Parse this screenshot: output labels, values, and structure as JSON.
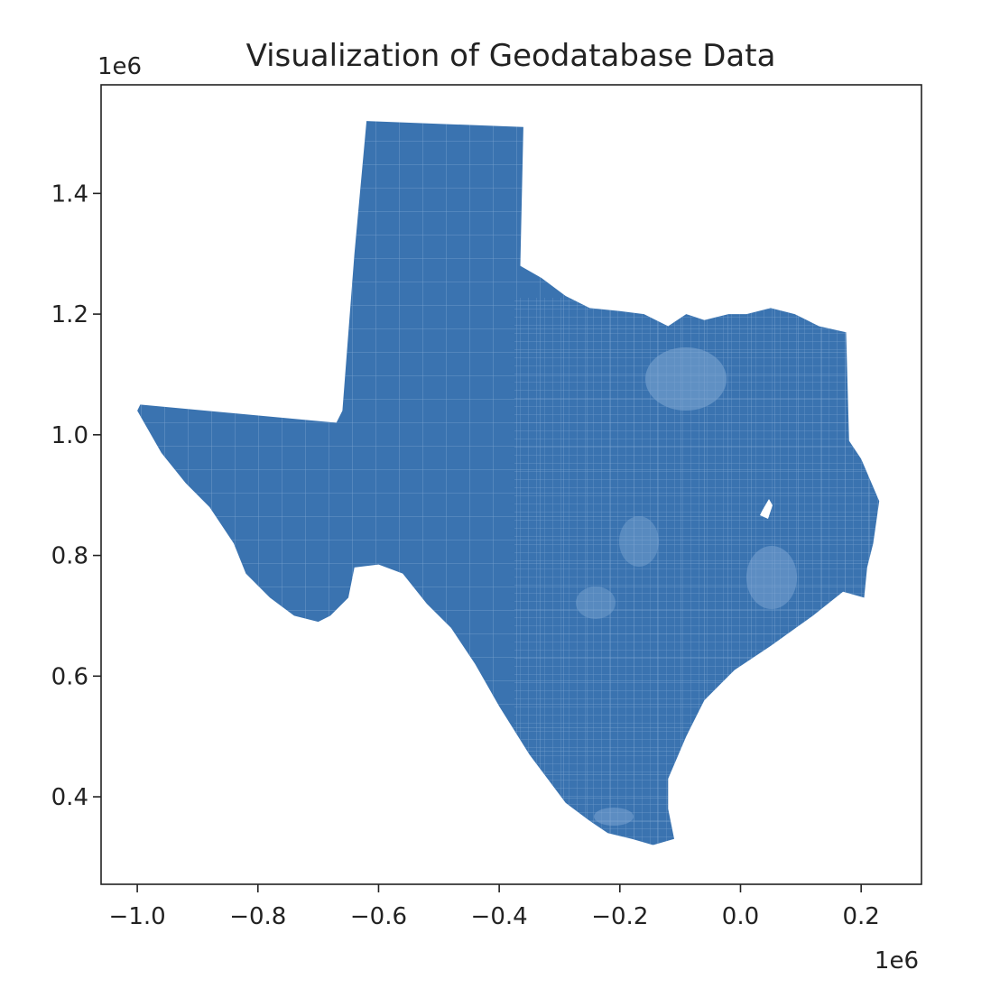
{
  "title": "Visualization of Geodatabase Data",
  "x_axis": {
    "offset_label": "1e6",
    "ticks": [
      {
        "value": -1.0,
        "label": "−1.0"
      },
      {
        "value": -0.8,
        "label": "−0.8"
      },
      {
        "value": -0.6,
        "label": "−0.6"
      },
      {
        "value": -0.4,
        "label": "−0.4"
      },
      {
        "value": -0.2,
        "label": "−0.2"
      },
      {
        "value": 0.0,
        "label": "0.0"
      },
      {
        "value": 0.2,
        "label": "0.2"
      }
    ],
    "range": [
      -1.06,
      0.3
    ]
  },
  "y_axis": {
    "offset_label": "1e6",
    "ticks": [
      {
        "value": 0.4,
        "label": "0.4"
      },
      {
        "value": 0.6,
        "label": "0.6"
      },
      {
        "value": 0.8,
        "label": "0.8"
      },
      {
        "value": 1.0,
        "label": "1.0"
      },
      {
        "value": 1.2,
        "label": "1.2"
      },
      {
        "value": 1.4,
        "label": "1.4"
      }
    ],
    "range": [
      0.255,
      1.58
    ]
  },
  "map": {
    "fill_color": "#3a73b0",
    "boundary_color": "#8fb3d9",
    "outline_xy": [
      [
        -0.62,
        1.52
      ],
      [
        -0.36,
        1.51
      ],
      [
        -0.365,
        1.28
      ],
      [
        -0.33,
        1.26
      ],
      [
        -0.29,
        1.23
      ],
      [
        -0.25,
        1.21
      ],
      [
        -0.2,
        1.205
      ],
      [
        -0.16,
        1.2
      ],
      [
        -0.12,
        1.18
      ],
      [
        -0.09,
        1.2
      ],
      [
        -0.06,
        1.19
      ],
      [
        -0.02,
        1.2
      ],
      [
        0.01,
        1.2
      ],
      [
        0.05,
        1.21
      ],
      [
        0.09,
        1.2
      ],
      [
        0.13,
        1.18
      ],
      [
        0.175,
        1.17
      ],
      [
        0.18,
        0.99
      ],
      [
        0.2,
        0.96
      ],
      [
        0.23,
        0.89
      ],
      [
        0.22,
        0.82
      ],
      [
        0.21,
        0.78
      ],
      [
        0.205,
        0.73
      ],
      [
        0.17,
        0.74
      ],
      [
        0.12,
        0.7
      ],
      [
        0.05,
        0.65
      ],
      [
        -0.01,
        0.61
      ],
      [
        -0.06,
        0.56
      ],
      [
        -0.09,
        0.5
      ],
      [
        -0.12,
        0.43
      ],
      [
        -0.12,
        0.38
      ],
      [
        -0.11,
        0.33
      ],
      [
        -0.145,
        0.32
      ],
      [
        -0.18,
        0.33
      ],
      [
        -0.22,
        0.34
      ],
      [
        -0.25,
        0.36
      ],
      [
        -0.29,
        0.39
      ],
      [
        -0.35,
        0.47
      ],
      [
        -0.4,
        0.55
      ],
      [
        -0.44,
        0.62
      ],
      [
        -0.48,
        0.68
      ],
      [
        -0.52,
        0.72
      ],
      [
        -0.56,
        0.77
      ],
      [
        -0.6,
        0.785
      ],
      [
        -0.64,
        0.78
      ],
      [
        -0.65,
        0.73
      ],
      [
        -0.68,
        0.7
      ],
      [
        -0.7,
        0.69
      ],
      [
        -0.74,
        0.7
      ],
      [
        -0.78,
        0.73
      ],
      [
        -0.82,
        0.77
      ],
      [
        -0.84,
        0.82
      ],
      [
        -0.88,
        0.88
      ],
      [
        -0.92,
        0.92
      ],
      [
        -0.96,
        0.97
      ],
      [
        -1.0,
        1.04
      ],
      [
        -0.995,
        1.05
      ],
      [
        -0.67,
        1.02
      ],
      [
        -0.66,
        1.04
      ],
      [
        -0.64,
        1.3
      ]
    ]
  }
}
